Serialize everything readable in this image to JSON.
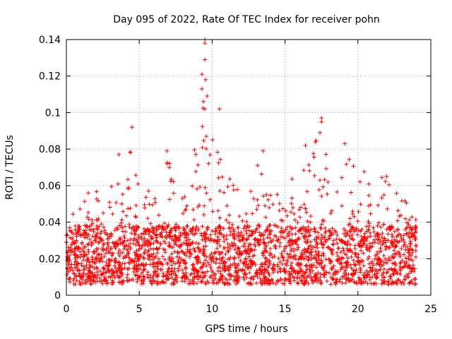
{
  "chart_data": {
    "type": "scatter",
    "title": "Day 095 of 2022, Rate Of TEC Index for receiver pohn",
    "xlabel": "GPS time / hours",
    "ylabel": "ROTI / TECUs",
    "xlim": [
      0,
      25
    ],
    "ylim": [
      0,
      0.14
    ],
    "x_ticks": [
      0,
      5,
      10,
      15,
      20,
      25
    ],
    "x_tick_labels": [
      "0",
      "5",
      "10",
      "15",
      "20",
      "25"
    ],
    "y_ticks": [
      0,
      0.02,
      0.04,
      0.06,
      0.08,
      0.1,
      0.12,
      0.14
    ],
    "y_tick_labels": [
      "0",
      "0.02",
      "0.04",
      "0.06",
      "0.08",
      "0.1",
      "0.12",
      "0.14"
    ],
    "grid": true,
    "marker": "+",
    "series_color": "#ff0000",
    "data_range": [
      0,
      24
    ],
    "baseline_roti": 0.02,
    "envelope": [
      [
        0.0,
        0.05
      ],
      [
        1.0,
        0.052
      ],
      [
        2.0,
        0.06
      ],
      [
        3.0,
        0.066
      ],
      [
        4.0,
        0.062
      ],
      [
        4.5,
        0.085
      ],
      [
        5.0,
        0.058
      ],
      [
        6.0,
        0.06
      ],
      [
        7.0,
        0.075
      ],
      [
        8.0,
        0.06
      ],
      [
        9.0,
        0.085
      ],
      [
        9.6,
        0.12
      ],
      [
        10.0,
        0.09
      ],
      [
        11.0,
        0.07
      ],
      [
        12.0,
        0.065
      ],
      [
        13.5,
        0.075
      ],
      [
        14.5,
        0.055
      ],
      [
        16.0,
        0.07
      ],
      [
        17.5,
        0.09
      ],
      [
        18.0,
        0.07
      ],
      [
        19.0,
        0.08
      ],
      [
        20.0,
        0.07
      ],
      [
        21.0,
        0.07
      ],
      [
        22.0,
        0.065
      ],
      [
        23.0,
        0.055
      ],
      [
        24.0,
        0.05
      ]
    ],
    "outliers": [
      {
        "x": 4.5,
        "y": 0.092
      },
      {
        "x": 9.5,
        "y": 0.14
      },
      {
        "x": 9.5,
        "y": 0.138
      },
      {
        "x": 9.5,
        "y": 0.129
      },
      {
        "x": 9.3,
        "y": 0.121
      },
      {
        "x": 9.55,
        "y": 0.118
      },
      {
        "x": 9.3,
        "y": 0.113
      },
      {
        "x": 9.4,
        "y": 0.106
      },
      {
        "x": 9.5,
        "y": 0.102
      },
      {
        "x": 10.5,
        "y": 0.102
      },
      {
        "x": 9.6,
        "y": 0.087
      },
      {
        "x": 17.5,
        "y": 0.097
      },
      {
        "x": 17.5,
        "y": 0.095
      },
      {
        "x": 17.4,
        "y": 0.089
      },
      {
        "x": 19.1,
        "y": 0.083
      },
      {
        "x": 16.4,
        "y": 0.082
      },
      {
        "x": 13.5,
        "y": 0.079
      },
      {
        "x": 6.9,
        "y": 0.079
      },
      {
        "x": 3.6,
        "y": 0.077
      }
    ]
  }
}
